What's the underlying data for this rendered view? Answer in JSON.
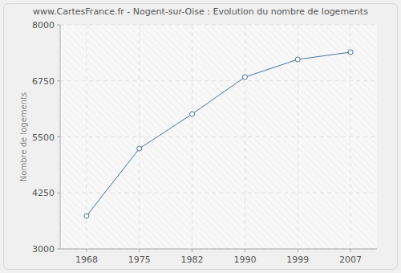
{
  "chart_data": {
    "type": "line",
    "title": "www.CartesFrance.fr - Nogent-sur-Oise : Evolution du nombre de logements",
    "y_label": "Nombre de logements",
    "categories": [
      "1968",
      "1975",
      "1982",
      "1990",
      "1999",
      "2007"
    ],
    "values": [
      3735,
      5240,
      6011,
      6835,
      7229,
      7391
    ],
    "color": "#4a72a0",
    "marker": "circle",
    "ylim": [
      3000,
      8000
    ],
    "yticks": [
      3000,
      4250,
      5500,
      6750,
      8000
    ],
    "grid": true
  }
}
